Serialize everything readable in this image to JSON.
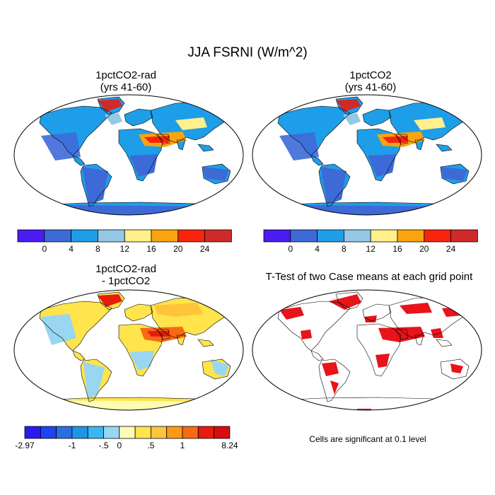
{
  "title": "JJA FSRNI (W/m^2)",
  "panels": [
    {
      "title_line1": "1pctCO2-rad",
      "title_line2": "(yrs 41-60)"
    },
    {
      "title_line1": "1pctCO2",
      "title_line2": "(yrs 41-60)"
    },
    {
      "title_line1": "1pctCO2-rad",
      "title_line2": "- 1pctCO2"
    },
    {
      "title_line1": "T-Test of two Case means at each grid point",
      "title_line2": ""
    }
  ],
  "colorbar_abs": {
    "colors": [
      "#4a1cf0",
      "#3e6ad8",
      "#1e9ee8",
      "#94c8e6",
      "#fff08c",
      "#fba40e",
      "#f8240e",
      "#cf2a2a"
    ],
    "labels": [
      "0",
      "4",
      "8",
      "12",
      "16",
      "20",
      "24"
    ]
  },
  "colorbar_diff": {
    "colors": [
      "#2a1af0",
      "#1c44f0",
      "#2a6ee0",
      "#1c96e8",
      "#38b6f0",
      "#98d6f2",
      "#fffcb4",
      "#ffe44c",
      "#ffc43c",
      "#fc9a14",
      "#f86a14",
      "#e81c0c",
      "#d80c0c"
    ],
    "labels": [
      "-2.97",
      "-1",
      "-.5",
      "0",
      ".5",
      "1",
      "8.24"
    ]
  },
  "significance_note": "Cells are significant at 0.1 level",
  "significance_color": "#e8141a"
}
